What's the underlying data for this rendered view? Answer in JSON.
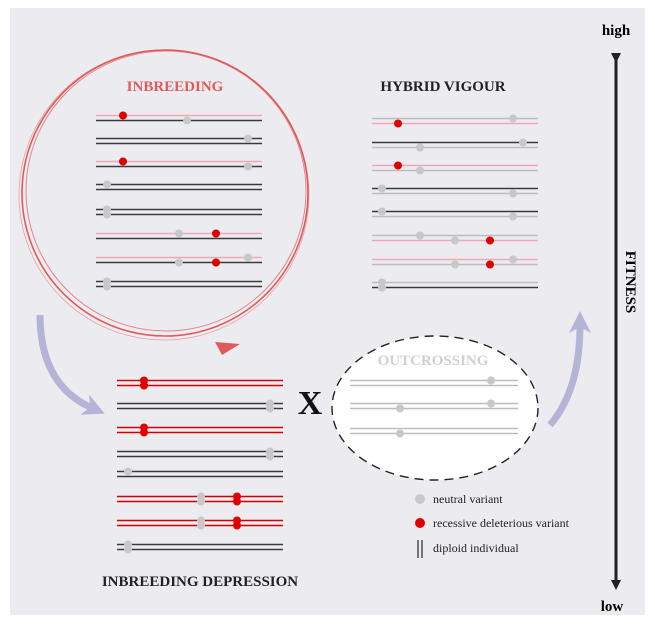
{
  "fitness_axis": {
    "high": "high",
    "low": "low",
    "label": "FITNESS"
  },
  "panels": {
    "inbreeding": "INBREEDING",
    "hybrid_vigour": "HYBRID VIGOUR",
    "outcrossing": "OUTCROSSING",
    "cross": "X",
    "inbreeding_depression": "INBREEDING DEPRESSION"
  },
  "legend": {
    "neutral": "neutral variant",
    "deleterious": "recessive deleterious variant",
    "diploid": "diploid individual"
  }
}
